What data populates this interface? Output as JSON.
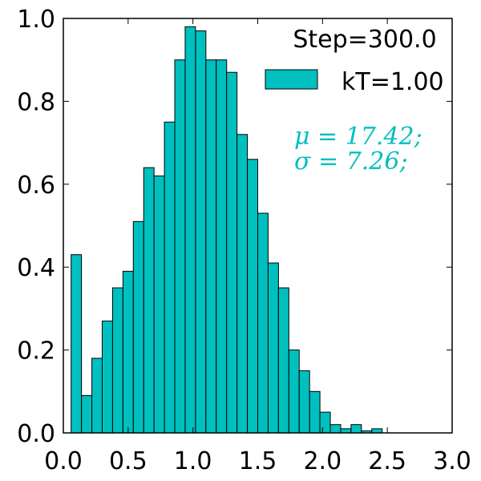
{
  "chart_data": {
    "type": "bar",
    "title": "",
    "xlabel": "",
    "ylabel": "",
    "xlim": [
      0.0,
      3.0
    ],
    "ylim": [
      0.0,
      1.0
    ],
    "bin_width": 0.08,
    "bin_start": 0.06,
    "values": [
      0.43,
      0.09,
      0.18,
      0.27,
      0.35,
      0.39,
      0.51,
      0.64,
      0.62,
      0.75,
      0.9,
      0.98,
      0.97,
      0.9,
      0.9,
      0.87,
      0.72,
      0.66,
      0.53,
      0.41,
      0.35,
      0.2,
      0.15,
      0.1,
      0.05,
      0.02,
      0.01,
      0.02,
      0.005,
      0.01
    ],
    "xticks": [
      "0.0",
      "0.5",
      "1.0",
      "1.5",
      "2.0",
      "2.5",
      "3.0"
    ],
    "yticks": [
      "0.0",
      "0.2",
      "0.4",
      "0.6",
      "0.8",
      "1.0"
    ],
    "bar_color": "#00bfbf",
    "annotation_color": "#00bfbf",
    "legend": {
      "placement": "top-right",
      "step_text": "Step=300.0",
      "entry_label": "kT=1.00"
    },
    "annotations": {
      "mu": "μ = 17.42;",
      "sigma": "σ = 7.26;"
    }
  }
}
